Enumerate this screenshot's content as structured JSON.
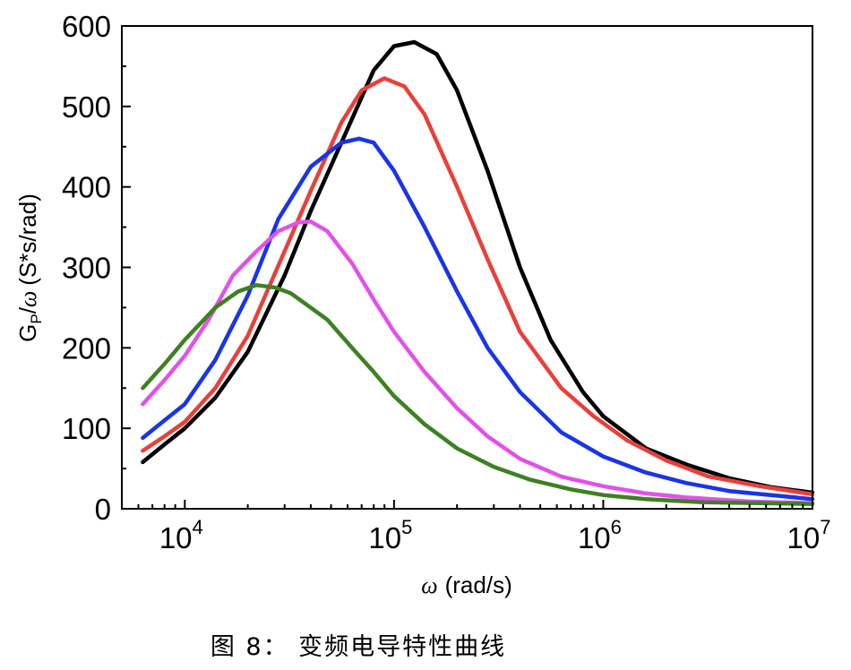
{
  "chart_data": {
    "type": "line",
    "xscale": "log",
    "xlim": [
      5000,
      10000000
    ],
    "ylim": [
      0,
      600
    ],
    "ylabel": {
      "main": "G",
      "sub": "P",
      "greek": "ω",
      "units": "(S*s/rad)"
    },
    "xlabel": {
      "greek": "ω",
      "units": "(rad/s)"
    },
    "y_ticks": [
      0,
      100,
      200,
      300,
      400,
      500,
      600
    ],
    "x_ticks": [
      {
        "base": "10",
        "exp": "4",
        "value": 10000
      },
      {
        "base": "10",
        "exp": "5",
        "value": 100000
      },
      {
        "base": "10",
        "exp": "6",
        "value": 1000000
      },
      {
        "base": "10",
        "exp": "7",
        "value": 10000000
      }
    ],
    "series": [
      {
        "name": "black",
        "color": "#000000",
        "points": [
          [
            6300,
            58
          ],
          [
            8000,
            80
          ],
          [
            10000,
            100
          ],
          [
            14000,
            138
          ],
          [
            20000,
            195
          ],
          [
            30000,
            290
          ],
          [
            40000,
            370
          ],
          [
            56000,
            455
          ],
          [
            80000,
            545
          ],
          [
            100000,
            575
          ],
          [
            125000,
            580
          ],
          [
            160000,
            565
          ],
          [
            200000,
            520
          ],
          [
            280000,
            420
          ],
          [
            400000,
            300
          ],
          [
            560000,
            210
          ],
          [
            800000,
            145
          ],
          [
            1000000,
            115
          ],
          [
            1600000,
            75
          ],
          [
            2500000,
            55
          ],
          [
            4000000,
            38
          ],
          [
            6300000,
            27
          ],
          [
            10000000,
            20
          ]
        ]
      },
      {
        "name": "red",
        "color": "#e8403a",
        "points": [
          [
            6300,
            72
          ],
          [
            8000,
            90
          ],
          [
            10000,
            108
          ],
          [
            14000,
            150
          ],
          [
            20000,
            215
          ],
          [
            30000,
            320
          ],
          [
            40000,
            395
          ],
          [
            56000,
            480
          ],
          [
            70000,
            520
          ],
          [
            90000,
            535
          ],
          [
            112000,
            525
          ],
          [
            140000,
            490
          ],
          [
            200000,
            400
          ],
          [
            280000,
            310
          ],
          [
            400000,
            220
          ],
          [
            630000,
            150
          ],
          [
            900000,
            115
          ],
          [
            1300000,
            85
          ],
          [
            2000000,
            60
          ],
          [
            3200000,
            40
          ],
          [
            5600000,
            28
          ],
          [
            10000000,
            18
          ]
        ]
      },
      {
        "name": "blue",
        "color": "#1a34e8",
        "points": [
          [
            6300,
            88
          ],
          [
            8000,
            110
          ],
          [
            10000,
            130
          ],
          [
            14000,
            185
          ],
          [
            20000,
            265
          ],
          [
            28000,
            360
          ],
          [
            40000,
            425
          ],
          [
            56000,
            455
          ],
          [
            68000,
            460
          ],
          [
            80000,
            455
          ],
          [
            100000,
            420
          ],
          [
            140000,
            350
          ],
          [
            200000,
            270
          ],
          [
            280000,
            200
          ],
          [
            400000,
            145
          ],
          [
            630000,
            95
          ],
          [
            1000000,
            65
          ],
          [
            1600000,
            45
          ],
          [
            2500000,
            32
          ],
          [
            4000000,
            22
          ],
          [
            10000000,
            12
          ]
        ]
      },
      {
        "name": "magenta",
        "color": "#e052e8",
        "points": [
          [
            6300,
            130
          ],
          [
            8000,
            160
          ],
          [
            10000,
            190
          ],
          [
            13000,
            235
          ],
          [
            17000,
            290
          ],
          [
            22000,
            320
          ],
          [
            28000,
            345
          ],
          [
            35000,
            356
          ],
          [
            40000,
            357
          ],
          [
            48000,
            345
          ],
          [
            63000,
            305
          ],
          [
            80000,
            260
          ],
          [
            100000,
            220
          ],
          [
            140000,
            170
          ],
          [
            200000,
            125
          ],
          [
            280000,
            90
          ],
          [
            400000,
            62
          ],
          [
            630000,
            40
          ],
          [
            1000000,
            28
          ],
          [
            1600000,
            19
          ],
          [
            2500000,
            14
          ],
          [
            5000000,
            9
          ],
          [
            10000000,
            7
          ]
        ]
      },
      {
        "name": "green",
        "color": "#3f8022",
        "points": [
          [
            6300,
            150
          ],
          [
            8000,
            180
          ],
          [
            10000,
            210
          ],
          [
            14000,
            250
          ],
          [
            18000,
            270
          ],
          [
            22000,
            278
          ],
          [
            27000,
            275
          ],
          [
            32000,
            268
          ],
          [
            40000,
            250
          ],
          [
            48000,
            235
          ],
          [
            63000,
            200
          ],
          [
            80000,
            170
          ],
          [
            100000,
            140
          ],
          [
            140000,
            105
          ],
          [
            200000,
            75
          ],
          [
            300000,
            52
          ],
          [
            450000,
            36
          ],
          [
            700000,
            24
          ],
          [
            1000000,
            17
          ],
          [
            1600000,
            12
          ],
          [
            3000000,
            8
          ],
          [
            10000000,
            6
          ]
        ]
      }
    ]
  },
  "caption": "图 8： 变频电导特性曲线"
}
